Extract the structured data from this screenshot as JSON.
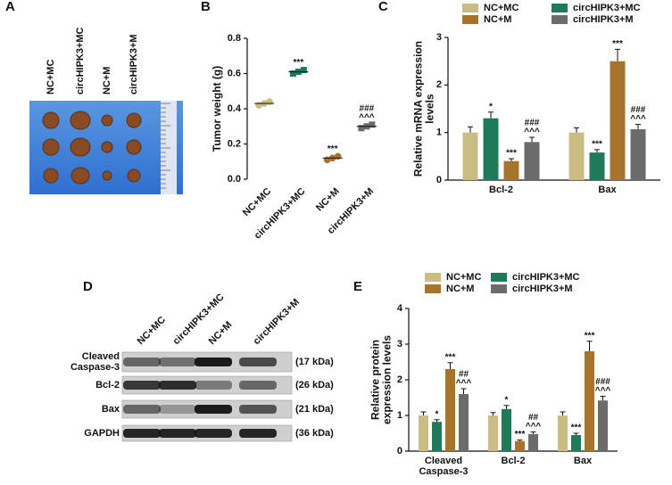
{
  "panel_labels": [
    "A",
    "B",
    "C",
    "D",
    "E"
  ],
  "photo": {
    "lanes": [
      "NC+MC",
      "circHIPK3+MC",
      "NC+M",
      "circHIPK3+M"
    ]
  },
  "blot": {
    "lanes": [
      "NC+MC",
      "circHIPK3+MC",
      "NC+M",
      "circHIPK3+M"
    ],
    "rows": [
      {
        "protein": "Cleaved\nCaspase-3",
        "size": "(17 kDa)"
      },
      {
        "protein": "Bcl-2",
        "size": "(26 kDa)"
      },
      {
        "protein": "Bax",
        "size": "(21 kDa)"
      },
      {
        "protein": "GAPDH",
        "size": "(36 kDa)"
      }
    ]
  },
  "chart_data": [
    {
      "type": "dot",
      "ylabel": "Tumor weight (g)",
      "categories": [
        "NC+MC",
        "circHIPK3+MC",
        "NC+M",
        "circHIPK3+M"
      ],
      "colors": [
        "#c9bd84",
        "#1f7a5a",
        "#a8732a",
        "#6b6b6b"
      ],
      "values": [
        0.43,
        0.61,
        0.12,
        0.3
      ],
      "points": [
        [
          0.42,
          0.43,
          0.44
        ],
        [
          0.6,
          0.61,
          0.62
        ],
        [
          0.11,
          0.12,
          0.13
        ],
        [
          0.29,
          0.3,
          0.31
        ]
      ],
      "annotations": [
        null,
        [
          "***"
        ],
        [
          "***"
        ],
        [
          "###",
          "^^^"
        ]
      ],
      "ylim": [
        0,
        0.8
      ],
      "yticks": [
        {
          "value": 0,
          "label": "0.0"
        },
        0.2,
        0.4,
        0.6,
        0.8
      ]
    },
    {
      "type": "bar",
      "ylabel": "Relative mRNA expression\nlevels",
      "categories": [
        "Bcl-2",
        "Bax"
      ],
      "series": [
        {
          "name": "NC+MC",
          "color": "#c9bd84",
          "values": [
            1.0,
            1.0
          ],
          "errors": [
            0.12,
            0.1
          ]
        },
        {
          "name": "circHIPK3+MC",
          "color": "#1f7a5a",
          "values": [
            1.3,
            0.58
          ],
          "errors": [
            0.13,
            0.06
          ],
          "annotations": [
            [
              "*"
            ],
            [
              "***"
            ]
          ]
        },
        {
          "name": "NC+M",
          "color": "#a8732a",
          "values": [
            0.4,
            2.5
          ],
          "errors": [
            0.05,
            0.25
          ],
          "annotations": [
            [
              "***"
            ],
            [
              "***"
            ]
          ]
        },
        {
          "name": "circHIPK3+M",
          "color": "#6b6b6b",
          "values": [
            0.8,
            1.07
          ],
          "errors": [
            0.1,
            0.1
          ],
          "annotations": [
            [
              "###",
              "^^^"
            ],
            [
              "###",
              "^^^"
            ]
          ]
        }
      ],
      "ylim": [
        0,
        3
      ],
      "yticks": [
        0,
        1,
        2,
        3
      ]
    },
    {
      "type": "bar",
      "ylabel": "Relative  protein\nexpression levels",
      "categories": [
        "Cleaved\nCaspase-3",
        "Bcl-2",
        "Bax"
      ],
      "series": [
        {
          "name": "NC+MC",
          "color": "#c9bd84",
          "values": [
            1.0,
            1.0,
            1.0
          ],
          "errors": [
            0.1,
            0.08,
            0.1
          ]
        },
        {
          "name": "circHIPK3+MC",
          "color": "#1f7a5a",
          "values": [
            0.82,
            1.18,
            0.45
          ],
          "errors": [
            0.06,
            0.1,
            0.05
          ],
          "annotations": [
            [
              "*"
            ],
            [
              "*"
            ],
            [
              "***"
            ]
          ]
        },
        {
          "name": "NC+M",
          "color": "#a8732a",
          "values": [
            2.3,
            0.28,
            2.8
          ],
          "errors": [
            0.18,
            0.03,
            0.28
          ],
          "annotations": [
            [
              "***"
            ],
            [
              "***"
            ],
            [
              "***"
            ]
          ]
        },
        {
          "name": "circHIPK3+M",
          "color": "#6b6b6b",
          "values": [
            1.6,
            0.48,
            1.42
          ],
          "errors": [
            0.15,
            0.06,
            0.12
          ],
          "annotations": [
            [
              "##",
              "^^^"
            ],
            [
              "##",
              "^^^"
            ],
            [
              "###",
              "^^^"
            ]
          ]
        }
      ],
      "ylim": [
        0,
        4
      ],
      "yticks": [
        0,
        1,
        2,
        3,
        4
      ]
    }
  ]
}
